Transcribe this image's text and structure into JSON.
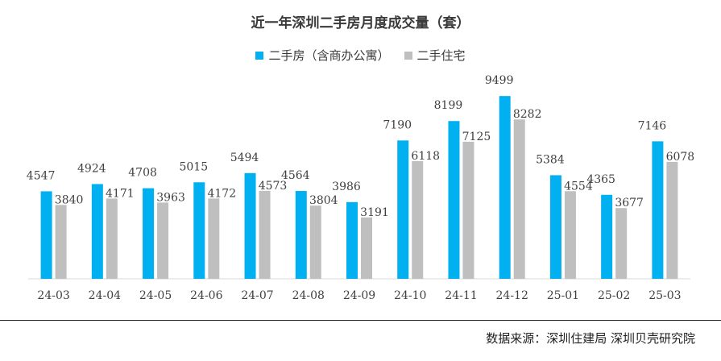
{
  "chart_data": {
    "type": "bar",
    "title": "近一年深圳二手房月度成交量（套）",
    "categories": [
      "24-03",
      "24-04",
      "24-05",
      "24-06",
      "24-07",
      "24-08",
      "24-09",
      "24-10",
      "24-11",
      "24-12",
      "25-01",
      "25-02",
      "25-03"
    ],
    "series": [
      {
        "name": "二手房（含商办公寓）",
        "color": "#00B0F0",
        "values": [
          4547,
          4924,
          4708,
          5015,
          5494,
          4564,
          3986,
          7190,
          8199,
          9499,
          5384,
          4365,
          7146
        ]
      },
      {
        "name": "二手住宅",
        "color": "#BFBFBF",
        "values": [
          3840,
          4171,
          3963,
          4172,
          4573,
          3804,
          3191,
          6118,
          7125,
          8282,
          4554,
          3677,
          6078
        ]
      }
    ],
    "ylim": [
      0,
      9800
    ],
    "grid": false,
    "legend_position": "top-center"
  },
  "source_text": "数据来源：深圳住建局  深圳贝壳研究院"
}
